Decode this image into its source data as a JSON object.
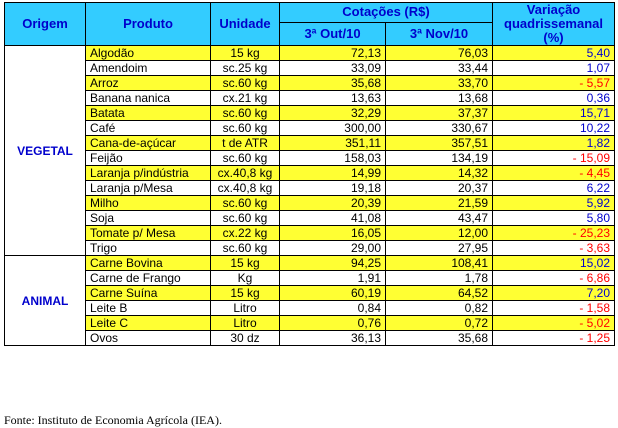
{
  "headers": {
    "origem": "Origem",
    "produto": "Produto",
    "unidade": "Unidade",
    "cotacoes": "Cotações (R$)",
    "col1": "3ª Out/10",
    "col2": "3ª Nov/10",
    "variacao": "Variação quadrissemanal (%)"
  },
  "groups": [
    {
      "origem": "VEGETAL",
      "rows": [
        {
          "produto": "Algodão",
          "unidade": "15 kg",
          "out": "72,13",
          "nov": "76,03",
          "var": "5,40",
          "neg": false,
          "hl": true
        },
        {
          "produto": "Amendoim",
          "unidade": "sc.25 kg",
          "out": "33,09",
          "nov": "33,44",
          "var": "1,07",
          "neg": false,
          "hl": false
        },
        {
          "produto": "Arroz",
          "unidade": "sc.60 kg",
          "out": "35,68",
          "nov": "33,70",
          "var": "- 5,57",
          "neg": true,
          "hl": true
        },
        {
          "produto": "Banana nanica",
          "unidade": "cx.21 kg",
          "out": "13,63",
          "nov": "13,68",
          "var": "0,36",
          "neg": false,
          "hl": false
        },
        {
          "produto": "Batata",
          "unidade": "sc.60 kg",
          "out": "32,29",
          "nov": "37,37",
          "var": "15,71",
          "neg": false,
          "hl": true
        },
        {
          "produto": "Café",
          "unidade": "sc.60 kg",
          "out": "300,00",
          "nov": "330,67",
          "var": "10,22",
          "neg": false,
          "hl": false
        },
        {
          "produto": "Cana-de-açúcar",
          "unidade": "t de ATR",
          "out": "351,11",
          "nov": "357,51",
          "var": "1,82",
          "neg": false,
          "hl": true
        },
        {
          "produto": "Feijão",
          "unidade": "sc.60 kg",
          "out": "158,03",
          "nov": "134,19",
          "var": "- 15,09",
          "neg": true,
          "hl": false
        },
        {
          "produto": "Laranja p/indústria",
          "unidade": "cx.40,8 kg",
          "out": "14,99",
          "nov": "14,32",
          "var": "- 4,45",
          "neg": true,
          "hl": true
        },
        {
          "produto": "Laranja p/Mesa",
          "unidade": "cx.40,8 kg",
          "out": "19,18",
          "nov": "20,37",
          "var": "6,22",
          "neg": false,
          "hl": false
        },
        {
          "produto": "Milho",
          "unidade": "sc.60 kg",
          "out": "20,39",
          "nov": "21,59",
          "var": "5,92",
          "neg": false,
          "hl": true
        },
        {
          "produto": "Soja",
          "unidade": "sc.60 kg",
          "out": "41,08",
          "nov": "43,47",
          "var": "5,80",
          "neg": false,
          "hl": false
        },
        {
          "produto": "Tomate p/ Mesa",
          "unidade": "cx.22 kg",
          "out": "16,05",
          "nov": "12,00",
          "var": "- 25,23",
          "neg": true,
          "hl": true
        },
        {
          "produto": "Trigo",
          "unidade": "sc.60 kg",
          "out": "29,00",
          "nov": "27,95",
          "var": "- 3,63",
          "neg": true,
          "hl": false
        }
      ]
    },
    {
      "origem": "ANIMAL",
      "rows": [
        {
          "produto": "Carne Bovina",
          "unidade": "15 kg",
          "out": "94,25",
          "nov": "108,41",
          "var": "15,02",
          "neg": false,
          "hl": true
        },
        {
          "produto": "Carne de Frango",
          "unidade": "Kg",
          "out": "1,91",
          "nov": "1,78",
          "var": "- 6,86",
          "neg": true,
          "hl": false
        },
        {
          "produto": "Carne Suína",
          "unidade": "15 kg",
          "out": "60,19",
          "nov": "64,52",
          "var": "7,20",
          "neg": false,
          "hl": true
        },
        {
          "produto": "Leite B",
          "unidade": "Litro",
          "out": "0,84",
          "nov": "0,82",
          "var": "- 1,58",
          "neg": true,
          "hl": false
        },
        {
          "produto": "Leite C",
          "unidade": "Litro",
          "out": "0,76",
          "nov": "0,72",
          "var": "- 5,02",
          "neg": true,
          "hl": true
        },
        {
          "produto": "Ovos",
          "unidade": "30 dz",
          "out": "36,13",
          "nov": "35,68",
          "var": "- 1,25",
          "neg": true,
          "hl": false
        }
      ]
    }
  ],
  "fonte": "Fonte: Instituto de Economia Agrícola (IEA).",
  "colors": {
    "header_bg": "#33ccff",
    "header_text": "#0000cc",
    "highlight": "#ffff33",
    "positive": "#0000cc",
    "negative": "#ff0000"
  }
}
